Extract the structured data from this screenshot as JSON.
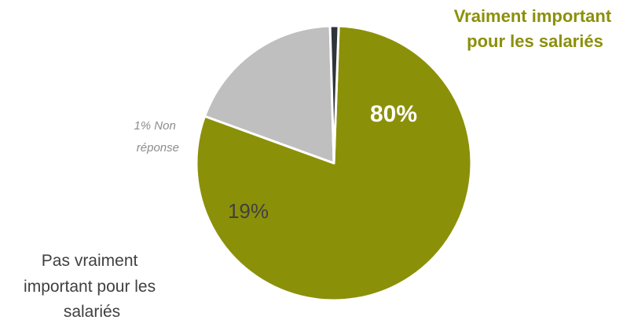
{
  "chart_data": {
    "type": "pie",
    "slices": [
      {
        "category_lines": [
          "Vraiment important",
          "pour les salariés"
        ],
        "value": 80,
        "value_label": "80%",
        "color": "#8b9009"
      },
      {
        "category_lines": [
          "Pas vraiment",
          "important pour les",
          "salariés"
        ],
        "value": 19,
        "value_label": "19%",
        "color": "#bfbfbf"
      },
      {
        "category_lines": [
          "1% Non",
          "réponse"
        ],
        "value": 1,
        "value_label": "",
        "color": "#2f343a"
      }
    ]
  }
}
